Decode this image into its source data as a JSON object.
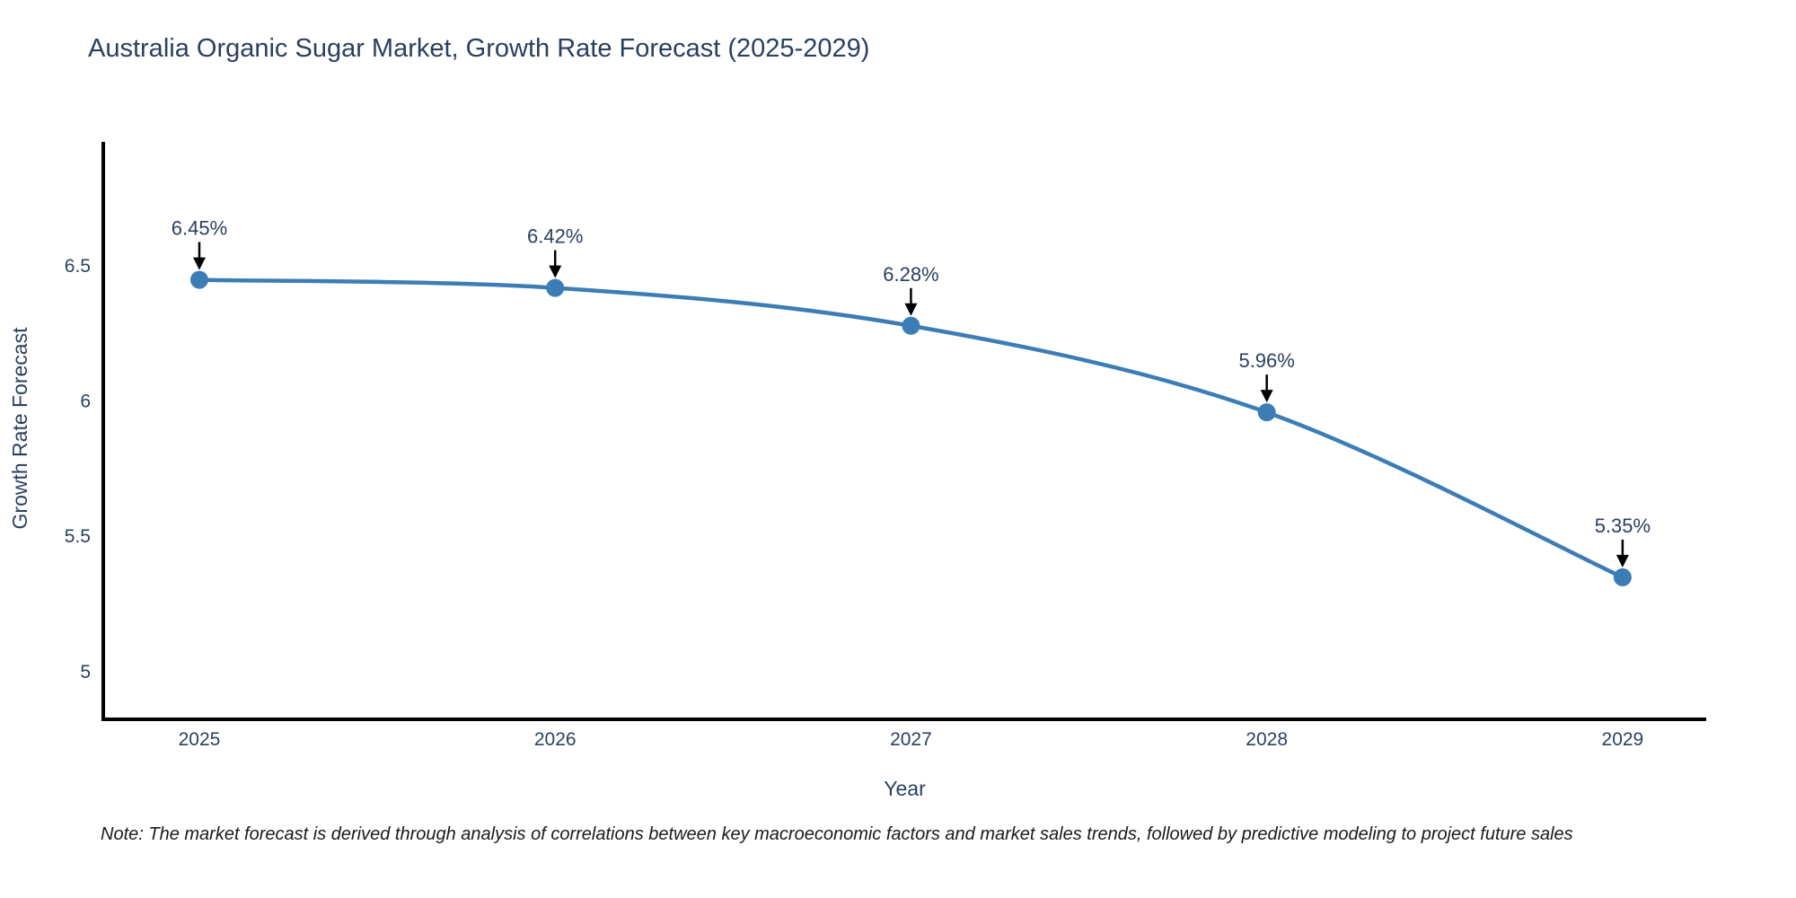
{
  "title": "Australia Organic Sugar Market, Growth Rate Forecast (2025-2029)",
  "note": "Note: The market forecast is derived through analysis of correlations between key macroeconomic factors and market sales trends, followed by predictive modeling to project future sales",
  "chart_data": {
    "type": "line",
    "title": "Australia Organic Sugar Market, Growth Rate Forecast (2025-2029)",
    "xlabel": "Year",
    "ylabel": "Growth Rate Forecast",
    "x": [
      2025,
      2026,
      2027,
      2028,
      2029
    ],
    "series": [
      {
        "name": "Growth Rate Forecast",
        "values": [
          6.45,
          6.42,
          6.28,
          5.96,
          5.35
        ]
      }
    ],
    "point_labels": [
      "6.45%",
      "6.42%",
      "6.28%",
      "5.96%",
      "5.35%"
    ],
    "x_ticks": [
      "2025",
      "2026",
      "2027",
      "2028",
      "2029"
    ],
    "y_ticks": [
      5,
      5.5,
      6,
      6.5
    ],
    "xlim": [
      2024.73,
      2029.235
    ],
    "ylim": [
      4.825,
      6.96
    ],
    "line_style": "spline",
    "grid": false,
    "legend": "none",
    "colors": {
      "line": "#3c7db5",
      "marker": "#3c7db5",
      "annotation_arrow": "#000000",
      "text": "#2a3f5f",
      "axis": "#000000",
      "background": "#ffffff"
    }
  }
}
